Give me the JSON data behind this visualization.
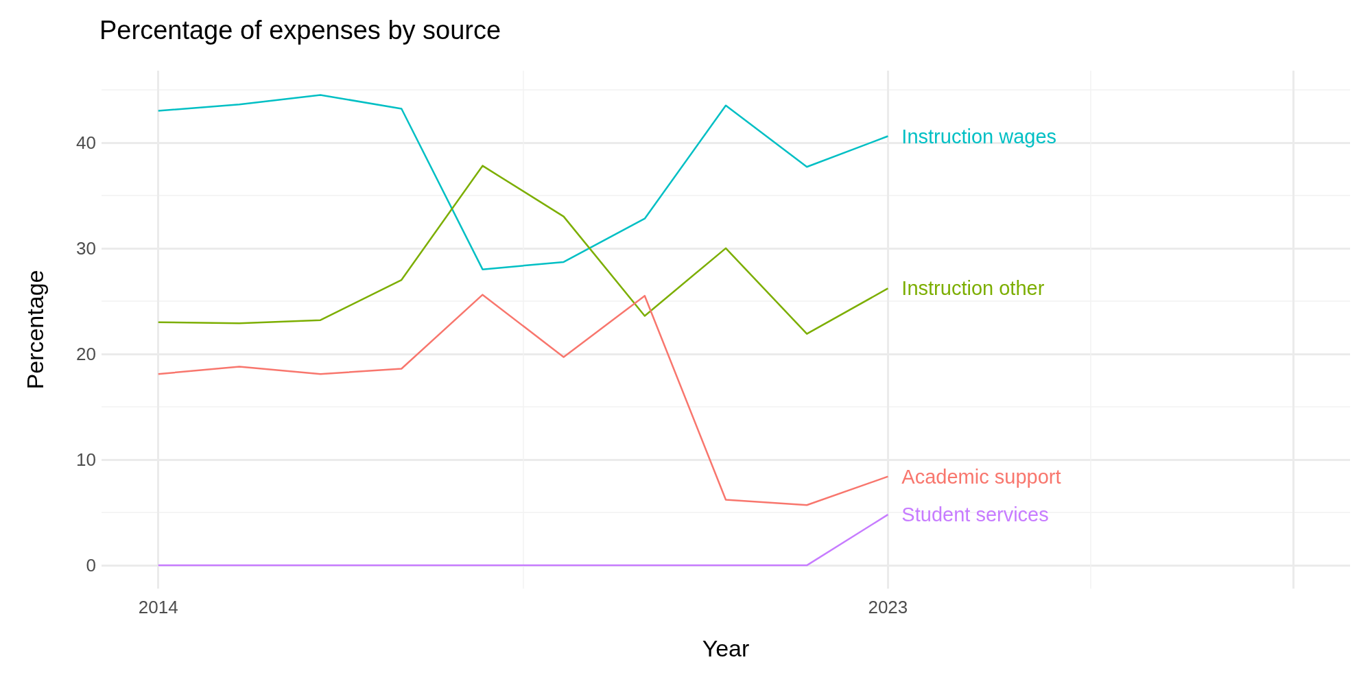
{
  "chart_data": {
    "type": "line",
    "title": "Percentage of expenses by source",
    "xlabel": "Year",
    "ylabel": "Percentage",
    "x": [
      2014,
      2015,
      2016,
      2017,
      2018,
      2019,
      2020,
      2021,
      2022,
      2023
    ],
    "xlim": [
      2013.3,
      2028.7
    ],
    "xticks": [
      2014,
      2023,
      {
        "value": 2028,
        "label": null
      }
    ],
    "ylim": [
      -2.2,
      46.8
    ],
    "yticks": [
      0,
      10,
      20,
      30,
      40
    ],
    "grid": true,
    "legend": false,
    "series": [
      {
        "name": "Instruction wages",
        "color": "#00bfc4",
        "values": [
          43.0,
          43.6,
          44.5,
          43.2,
          28.0,
          28.7,
          32.8,
          43.5,
          37.7,
          40.6
        ]
      },
      {
        "name": "Instruction other",
        "color": "#7cae00",
        "values": [
          23.0,
          22.9,
          23.2,
          27.0,
          37.8,
          33.0,
          23.6,
          30.0,
          21.9,
          26.2
        ]
      },
      {
        "name": "Academic support",
        "color": "#f8766d",
        "values": [
          18.1,
          18.8,
          18.1,
          18.6,
          25.6,
          19.7,
          25.5,
          6.2,
          5.7,
          8.4
        ]
      },
      {
        "name": "Student services",
        "color": "#c77cff",
        "values": [
          0,
          0,
          0,
          0,
          0,
          0,
          0,
          0,
          0,
          4.8
        ]
      }
    ]
  }
}
